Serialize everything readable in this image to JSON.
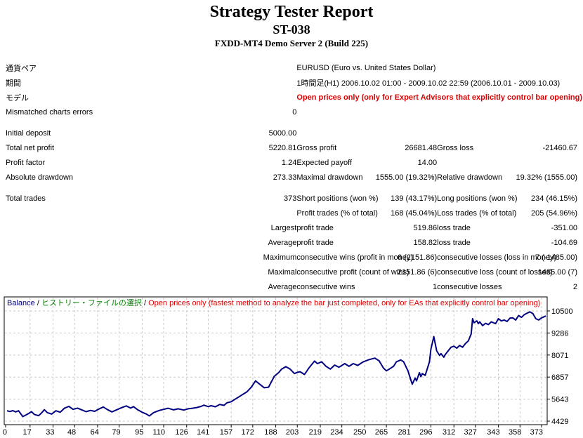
{
  "header": {
    "title": "Strategy Tester Report",
    "subtitle": "ST-038",
    "server": "FXDD-MT4 Demo Server 2 (Build 225)"
  },
  "colors": {
    "red": "#dd0000",
    "green": "#008000",
    "navy": "#000080",
    "grid": "#c9c9c9",
    "axis": "#000000",
    "line": "#000080"
  },
  "table": {
    "rows": [
      {
        "c1": "通貨ペア",
        "span": "EURUSD (Euro vs. United States Dollar)",
        "span_red": false
      },
      {
        "c1": "期間",
        "span": "1時間足(H1) 2006.10.02 01:00 - 2009.10.02 22:59 (2006.10.01 - 2009.10.03)",
        "span_red": false
      },
      {
        "c1": "モデル",
        "span": "Open prices only (only for Expert Advisors that explicitly control bar opening)",
        "span_red": true
      },
      {
        "c1": "Mismatched charts errors",
        "v1": "0",
        "c2": "",
        "v2": "",
        "c3": "",
        "v3": ""
      },
      {
        "gap": true
      },
      {
        "c1": "Initial deposit",
        "v1": "5000.00",
        "c2": "",
        "v2": "",
        "c3": "",
        "v3": ""
      },
      {
        "c1": "Total net profit",
        "v1": "5220.81",
        "c2": "Gross profit",
        "v2": "26681.48",
        "c3": "Gross loss",
        "v3": "-21460.67"
      },
      {
        "c1": "Profit factor",
        "v1": "1.24",
        "c2": "Expected payoff",
        "v2": "14.00",
        "c3": "",
        "v3": ""
      },
      {
        "c1": "Absolute drawdown",
        "v1": "273.33",
        "c2": "Maximal drawdown",
        "v2": "1555.00 (19.32%)",
        "c3": "Relative drawdown",
        "v3": "19.32% (1555.00)"
      },
      {
        "gap": true
      },
      {
        "c1": "Total trades",
        "v1": "373",
        "c2": "Short positions (won %)",
        "v2": "139 (43.17%)",
        "c3": "Long positions (won %)",
        "v3": "234 (46.15%)"
      },
      {
        "c1": "",
        "v1": "",
        "c2": "Profit trades (% of total)",
        "v2": "168 (45.04%)",
        "c3": "Loss trades (% of total)",
        "v3": "205 (54.96%)"
      },
      {
        "c1": "",
        "v1": "Largest",
        "c2": "profit trade",
        "v2": "519.86",
        "c3": "loss trade",
        "v3": "-351.00"
      },
      {
        "c1": "",
        "v1": "Average",
        "c2": "profit trade",
        "v2": "158.82",
        "c3": "loss trade",
        "v3": "-104.69"
      },
      {
        "c1": "",
        "v1": "Maximum",
        "c2": "consecutive wins (profit in money)",
        "v2": "6 (2151.86)",
        "c3": "consecutive losses (loss in money)",
        "v3": "7 (-1485.00)"
      },
      {
        "c1": "",
        "v1": "Maximal",
        "c2": "consecutive profit (count of wins)",
        "v2": "2151.86 (6)",
        "c3": "consecutive loss (count of losses)",
        "v3": "-1485.00 (7)"
      },
      {
        "c1": "",
        "v1": "Average",
        "c2": "consecutive wins",
        "v2": "1",
        "c3": "consecutive losses",
        "v3": "2"
      }
    ]
  },
  "chart_data": {
    "type": "line",
    "legend": {
      "balance_label": "Balance",
      "separator": " / ",
      "history_label": "ヒストリー・ファイルの選択",
      "model_label": "Open prices only (fastest method to analyze the bar just completed, only for EAs that explicitly control bar opening)"
    },
    "xlabel": "",
    "ylabel": "",
    "x_ticks": [
      0,
      17,
      33,
      48,
      64,
      79,
      95,
      110,
      126,
      141,
      157,
      172,
      188,
      203,
      219,
      234,
      250,
      265,
      281,
      296,
      312,
      327,
      343,
      358,
      373
    ],
    "y_ticks": [
      10500,
      9286,
      8071,
      6857,
      5643,
      4429
    ],
    "x_range": [
      0,
      373
    ],
    "grid": true,
    "legend_position": "top-left-inside",
    "series": [
      {
        "name": "Balance",
        "points": [
          [
            1,
            5000
          ],
          [
            3,
            4960
          ],
          [
            5,
            5010
          ],
          [
            7,
            4940
          ],
          [
            9,
            5000
          ],
          [
            12,
            4680
          ],
          [
            14,
            4760
          ],
          [
            16,
            4850
          ],
          [
            18,
            4950
          ],
          [
            20,
            4800
          ],
          [
            23,
            4730
          ],
          [
            25,
            4880
          ],
          [
            27,
            5060
          ],
          [
            29,
            4900
          ],
          [
            32,
            4820
          ],
          [
            35,
            5000
          ],
          [
            38,
            4920
          ],
          [
            41,
            5150
          ],
          [
            44,
            5240
          ],
          [
            47,
            5080
          ],
          [
            50,
            5150
          ],
          [
            53,
            5050
          ],
          [
            56,
            4950
          ],
          [
            59,
            5020
          ],
          [
            62,
            4970
          ],
          [
            65,
            5100
          ],
          [
            68,
            5210
          ],
          [
            71,
            5060
          ],
          [
            74,
            4940
          ],
          [
            78,
            5080
          ],
          [
            81,
            5180
          ],
          [
            84,
            5270
          ],
          [
            87,
            5150
          ],
          [
            89,
            5230
          ],
          [
            92,
            5050
          ],
          [
            95,
            4920
          ],
          [
            98,
            4820
          ],
          [
            100,
            4715
          ],
          [
            103,
            4900
          ],
          [
            107,
            5020
          ],
          [
            110,
            5080
          ],
          [
            113,
            5140
          ],
          [
            117,
            5050
          ],
          [
            120,
            5110
          ],
          [
            124,
            5040
          ],
          [
            127,
            5110
          ],
          [
            130,
            5140
          ],
          [
            133,
            5180
          ],
          [
            136,
            5240
          ],
          [
            138,
            5310
          ],
          [
            141,
            5230
          ],
          [
            143,
            5280
          ],
          [
            146,
            5220
          ],
          [
            149,
            5350
          ],
          [
            152,
            5300
          ],
          [
            154,
            5440
          ],
          [
            157,
            5500
          ],
          [
            159,
            5600
          ],
          [
            162,
            5750
          ],
          [
            165,
            5900
          ],
          [
            168,
            6050
          ],
          [
            171,
            6300
          ],
          [
            174,
            6650
          ],
          [
            177,
            6450
          ],
          [
            180,
            6270
          ],
          [
            183,
            6300
          ],
          [
            185,
            6600
          ],
          [
            187,
            6900
          ],
          [
            190,
            7100
          ],
          [
            192,
            7290
          ],
          [
            195,
            7430
          ],
          [
            198,
            7300
          ],
          [
            201,
            7050
          ],
          [
            203,
            7120
          ],
          [
            205,
            7150
          ],
          [
            208,
            7000
          ],
          [
            211,
            7350
          ],
          [
            215,
            7740
          ],
          [
            217,
            7600
          ],
          [
            220,
            7700
          ],
          [
            223,
            7450
          ],
          [
            226,
            7300
          ],
          [
            229,
            7520
          ],
          [
            232,
            7400
          ],
          [
            236,
            7600
          ],
          [
            239,
            7450
          ],
          [
            242,
            7600
          ],
          [
            245,
            7500
          ],
          [
            249,
            7700
          ],
          [
            253,
            7820
          ],
          [
            257,
            7900
          ],
          [
            260,
            7750
          ],
          [
            263,
            7350
          ],
          [
            265,
            7200
          ],
          [
            267,
            7300
          ],
          [
            270,
            7450
          ],
          [
            272,
            7700
          ],
          [
            275,
            7800
          ],
          [
            277,
            7700
          ],
          [
            280,
            7200
          ],
          [
            282,
            6700
          ],
          [
            283,
            6465
          ],
          [
            285,
            6800
          ],
          [
            286,
            6650
          ],
          [
            288,
            7100
          ],
          [
            289,
            6880
          ],
          [
            290,
            7050
          ],
          [
            292,
            6950
          ],
          [
            293,
            7200
          ],
          [
            295,
            7700
          ],
          [
            296,
            8400
          ],
          [
            298,
            9090
          ],
          [
            299,
            8700
          ],
          [
            300,
            8300
          ],
          [
            302,
            8050
          ],
          [
            303,
            8150
          ],
          [
            305,
            7950
          ],
          [
            306,
            8100
          ],
          [
            308,
            8300
          ],
          [
            310,
            8500
          ],
          [
            312,
            8560
          ],
          [
            314,
            8450
          ],
          [
            316,
            8600
          ],
          [
            318,
            8500
          ],
          [
            320,
            8700
          ],
          [
            322,
            8850
          ],
          [
            324,
            9230
          ],
          [
            325,
            10075
          ],
          [
            326,
            9850
          ],
          [
            328,
            9950
          ],
          [
            329,
            9800
          ],
          [
            330,
            9900
          ],
          [
            332,
            9690
          ],
          [
            334,
            9820
          ],
          [
            336,
            9750
          ],
          [
            338,
            9900
          ],
          [
            341,
            9800
          ],
          [
            343,
            10075
          ],
          [
            345,
            9950
          ],
          [
            347,
            10000
          ],
          [
            349,
            9920
          ],
          [
            351,
            10100
          ],
          [
            353,
            10120
          ],
          [
            355,
            10000
          ],
          [
            357,
            10250
          ],
          [
            359,
            10150
          ],
          [
            361,
            10300
          ],
          [
            363,
            10380
          ],
          [
            365,
            10450
          ],
          [
            367,
            10350
          ],
          [
            369,
            10075
          ],
          [
            371,
            10000
          ],
          [
            373,
            10120
          ],
          [
            376,
            10221
          ]
        ]
      }
    ]
  }
}
